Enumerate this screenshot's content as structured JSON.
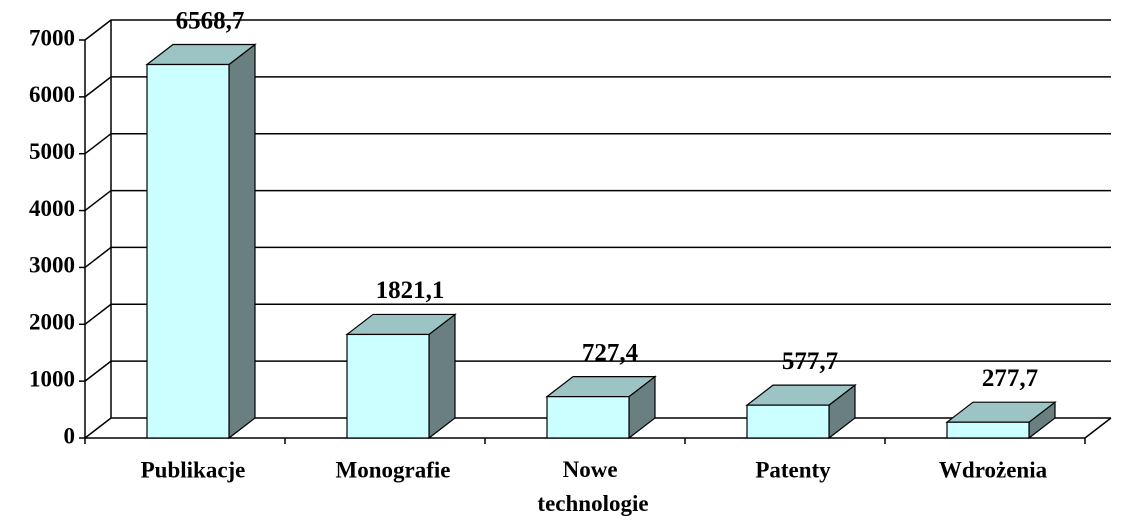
{
  "chart_data": {
    "type": "bar3d",
    "categories": [
      "Publikacje",
      "Monografie",
      "Nowe technologie",
      "Patenty",
      "Wdrożenia"
    ],
    "values": [
      6568.7,
      1821.1,
      727.4,
      577.7,
      277.7
    ],
    "value_labels": [
      "6568,7",
      "1821,1",
      "727,4",
      "577,7",
      "277,7"
    ],
    "color": "#ccffff",
    "ylim": [
      0,
      7000
    ],
    "yticks": [
      0,
      1000,
      2000,
      3000,
      4000,
      5000,
      6000,
      7000
    ],
    "grid": true
  }
}
